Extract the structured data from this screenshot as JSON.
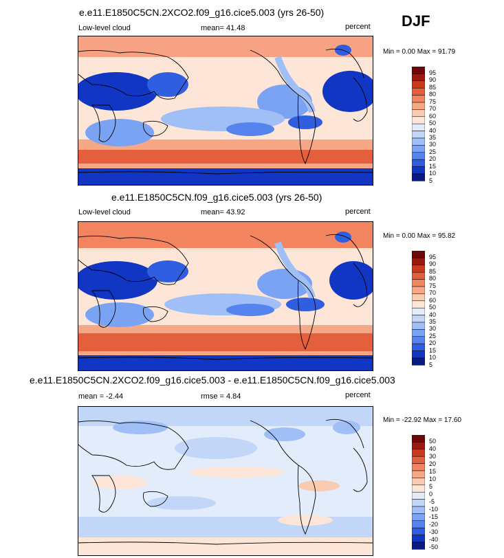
{
  "season": "DJF",
  "colors": {
    "full_scale": [
      "#0a1a80",
      "#1236c4",
      "#2f5fe0",
      "#5684ee",
      "#7ba3f3",
      "#9fbff6",
      "#c2d6f8",
      "#e2ecfa",
      "#ffffff",
      "#fde6d8",
      "#f9cbb0",
      "#f6a886",
      "#f28560",
      "#e4603d",
      "#cc3a1d",
      "#9a1a10",
      "#6b0a08"
    ],
    "land": "#ffffff",
    "coast": "#000000"
  },
  "panels": [
    {
      "title": "e.e11.E1850C5CN.2XCO2.f09_g16.cice5.003 (yrs 26-50)",
      "left_text": "Low-level cloud",
      "mid_text": "mean=  41.48",
      "right_text": "percent",
      "minmax": "Min =   0.00 Max =  91.79",
      "mean": 41.48,
      "min": 0.0,
      "max": 91.79,
      "colorbar_labels": [
        "95",
        "90",
        "85",
        "80",
        "75",
        "70",
        "60",
        "50",
        "40",
        "35",
        "30",
        "25",
        "20",
        "15",
        "10",
        "5"
      ]
    },
    {
      "title": "e.e11.E1850C5CN.f09_g16.cice5.003 (yrs 26-50)",
      "left_text": "Low-level cloud",
      "mid_text": "mean=  43.92",
      "right_text": "percent",
      "minmax": "Min =   0.00 Max =  95.82",
      "mean": 43.92,
      "min": 0.0,
      "max": 95.82,
      "colorbar_labels": [
        "95",
        "90",
        "85",
        "80",
        "75",
        "70",
        "60",
        "50",
        "40",
        "35",
        "30",
        "25",
        "20",
        "15",
        "10",
        "5"
      ]
    },
    {
      "title": "e.e11.E1850C5CN.2XCO2.f09_g16.cice5.003 - e.e11.E1850C5CN.f09_g16.cice5.003",
      "left_text": "mean =  -2.44",
      "mid_text": "rmse =   4.84",
      "right_text": "percent",
      "minmax": "Min = -22.92 Max =  17.60",
      "mean": -2.44,
      "rmse": 4.84,
      "min": -22.92,
      "max": 17.6,
      "colorbar_labels": [
        "50",
        "40",
        "30",
        "20",
        "15",
        "10",
        "5",
        "0",
        "-5",
        "-10",
        "-15",
        "-20",
        "-30",
        "-40",
        "-50"
      ]
    }
  ],
  "chart_data": [
    {
      "type": "heatmap",
      "title": "e.e11.E1850C5CN.2XCO2.f09_g16.cice5.003 (yrs 26-50)",
      "variable": "Low-level cloud",
      "units": "percent",
      "season": "DJF",
      "mean": 41.48,
      "min": 0.0,
      "max": 91.79,
      "levels": [
        5,
        10,
        15,
        20,
        25,
        30,
        35,
        40,
        50,
        60,
        70,
        75,
        80,
        85,
        90,
        95
      ]
    },
    {
      "type": "heatmap",
      "title": "e.e11.E1850C5CN.f09_g16.cice5.003 (yrs 26-50)",
      "variable": "Low-level cloud",
      "units": "percent",
      "season": "DJF",
      "mean": 43.92,
      "min": 0.0,
      "max": 95.82,
      "levels": [
        5,
        10,
        15,
        20,
        25,
        30,
        35,
        40,
        50,
        60,
        70,
        75,
        80,
        85,
        90,
        95
      ]
    },
    {
      "type": "heatmap",
      "title": "e.e11.E1850C5CN.2XCO2.f09_g16.cice5.003 - e.e11.E1850C5CN.f09_g16.cice5.003",
      "units": "percent",
      "season": "DJF",
      "mean": -2.44,
      "rmse": 4.84,
      "min": -22.92,
      "max": 17.6,
      "levels": [
        -50,
        -40,
        -30,
        -20,
        -15,
        -10,
        -5,
        0,
        5,
        10,
        15,
        20,
        30,
        40,
        50
      ]
    }
  ]
}
